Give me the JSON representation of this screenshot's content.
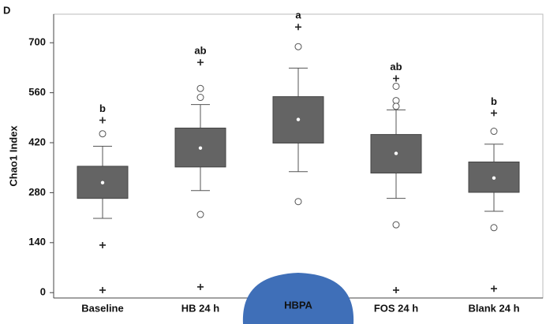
{
  "chart_data": {
    "type": "box",
    "panel_label": "D",
    "y_label": "Chao1 Index",
    "categories": [
      "Baseline",
      "HB 24 h",
      "HBPA",
      "FOS 24 h",
      "Blank 24 h"
    ],
    "letters": [
      "b",
      "ab",
      "a",
      "ab",
      "b"
    ],
    "color": "#646464",
    "boxes": [
      {
        "whisker_low": 208,
        "q1": 264,
        "median": 308,
        "q3": 354,
        "whisker_high": 410,
        "outliers": [
          445
        ],
        "extremes": [
          483,
          133,
          7
        ]
      },
      {
        "whisker_low": 286,
        "q1": 352,
        "median": 405,
        "q3": 461,
        "whisker_high": 527,
        "outliers": [
          547,
          572,
          219
        ],
        "extremes": [
          645,
          16
        ]
      },
      {
        "whisker_low": 339,
        "q1": 419,
        "median": 485,
        "q3": 549,
        "whisker_high": 629,
        "outliers": [
          689,
          255
        ],
        "extremes": [
          744
        ]
      },
      {
        "whisker_low": 264,
        "q1": 335,
        "median": 390,
        "q3": 443,
        "whisker_high": 512,
        "outliers": [
          538,
          522,
          578,
          190
        ],
        "extremes": [
          600,
          7
        ]
      },
      {
        "whisker_low": 228,
        "q1": 281,
        "median": 321,
        "q3": 366,
        "whisker_high": 416,
        "outliers": [
          452,
          182
        ],
        "extremes": [
          503,
          11
        ]
      }
    ],
    "ylim": [
      -15,
      780
    ],
    "yticks": [
      0,
      140,
      280,
      420,
      560,
      700
    ]
  }
}
